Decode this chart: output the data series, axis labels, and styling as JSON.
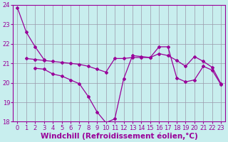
{
  "background_color": "#c8eeee",
  "line_color": "#990099",
  "grid_color": "#9999aa",
  "ylim": [
    18,
    24
  ],
  "xlim": [
    -0.5,
    23.5
  ],
  "yticks": [
    18,
    19,
    20,
    21,
    22,
    23,
    24
  ],
  "xticks": [
    0,
    1,
    2,
    3,
    4,
    5,
    6,
    7,
    8,
    9,
    10,
    11,
    12,
    13,
    14,
    15,
    16,
    17,
    18,
    19,
    20,
    21,
    22,
    23
  ],
  "xlabel": "Windchill (Refroidissement éolien,°C)",
  "xlabel_fontsize": 7.5,
  "tick_fontsize": 6.0,
  "marker": "D",
  "markersize": 2.0,
  "linewidth": 0.9,
  "line1_x": [
    0,
    1,
    2,
    3
  ],
  "line1_y": [
    23.85,
    22.6,
    21.85,
    21.2
  ],
  "line2_x": [
    1,
    2,
    3,
    4,
    5,
    6,
    7,
    8,
    9,
    10,
    11,
    12,
    13,
    14,
    15,
    16,
    17,
    18,
    19,
    20,
    21,
    22,
    23
  ],
  "line2_y": [
    21.25,
    21.2,
    21.15,
    21.1,
    21.05,
    21.0,
    20.95,
    20.85,
    20.7,
    20.55,
    21.25,
    21.25,
    21.3,
    21.3,
    21.3,
    21.5,
    21.4,
    21.15,
    20.85,
    21.35,
    21.1,
    20.8,
    19.95
  ],
  "line3_x": [
    2,
    3,
    4,
    5,
    6,
    7,
    8,
    9,
    10,
    11,
    12,
    13,
    14,
    15,
    16,
    17,
    18,
    19,
    20,
    21,
    22,
    23
  ],
  "line3_y": [
    20.75,
    20.7,
    20.45,
    20.35,
    20.15,
    19.95,
    19.3,
    18.5,
    17.95,
    18.15,
    20.2,
    21.4,
    21.35,
    21.3,
    21.85,
    21.85,
    20.25,
    20.05,
    20.15,
    20.85,
    20.65,
    19.9
  ]
}
